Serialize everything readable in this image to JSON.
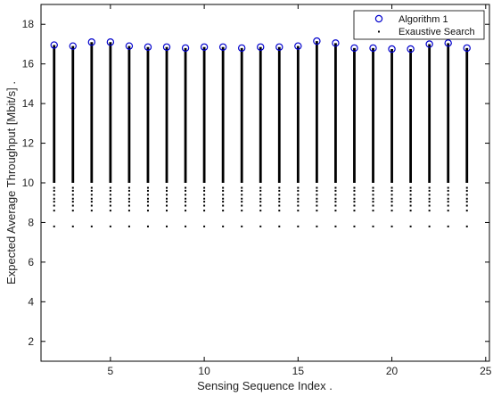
{
  "chart_data": {
    "type": "scatter",
    "title": "",
    "xlabel": "Sensing Sequence Index  .",
    "ylabel": "Expected Average Throughput [Mbit/s]  .",
    "xlim": [
      1.3,
      25.2
    ],
    "ylim": [
      1.0,
      19.0
    ],
    "xticks": [
      5,
      10,
      15,
      20,
      25
    ],
    "yticks": [
      2,
      4,
      6,
      8,
      10,
      12,
      14,
      16,
      18
    ],
    "grid": false,
    "legend_position": "top-right",
    "series": [
      {
        "name": "Algorithm 1",
        "marker": "circle",
        "color": "#0000cc",
        "x": [
          2,
          3,
          4,
          5,
          6,
          7,
          8,
          9,
          10,
          11,
          12,
          13,
          14,
          15,
          16,
          17,
          18,
          19,
          20,
          21,
          22,
          23,
          24
        ],
        "y": [
          16.95,
          16.9,
          17.1,
          17.1,
          16.9,
          16.85,
          16.85,
          16.8,
          16.85,
          16.85,
          16.8,
          16.85,
          16.85,
          16.9,
          17.15,
          17.05,
          16.8,
          16.8,
          16.75,
          16.75,
          17.0,
          17.05,
          16.8
        ]
      },
      {
        "name": "Exaustive Search",
        "marker": "dot",
        "color": "#000000",
        "x": [
          2,
          3,
          4,
          5,
          6,
          7,
          8,
          9,
          10,
          11,
          12,
          13,
          14,
          15,
          16,
          17,
          18,
          19,
          20,
          21,
          22,
          23,
          24
        ],
        "dense_from": [
          10.0,
          10.0,
          10.0,
          10.0,
          10.0,
          10.0,
          10.0,
          10.0,
          10.0,
          10.0,
          10.0,
          10.0,
          10.0,
          10.0,
          10.0,
          10.0,
          10.0,
          10.0,
          10.0,
          10.0,
          10.0,
          10.0,
          10.0
        ],
        "dense_to": [
          16.95,
          16.9,
          17.1,
          17.1,
          16.9,
          16.85,
          16.85,
          16.8,
          16.85,
          16.85,
          16.8,
          16.85,
          16.85,
          16.9,
          17.15,
          17.05,
          16.8,
          16.8,
          16.75,
          16.75,
          17.0,
          17.05,
          16.8
        ],
        "sparse_y": [
          9.75,
          9.6,
          9.4,
          9.2,
          9.05,
          8.85,
          8.6,
          7.8
        ]
      }
    ]
  }
}
